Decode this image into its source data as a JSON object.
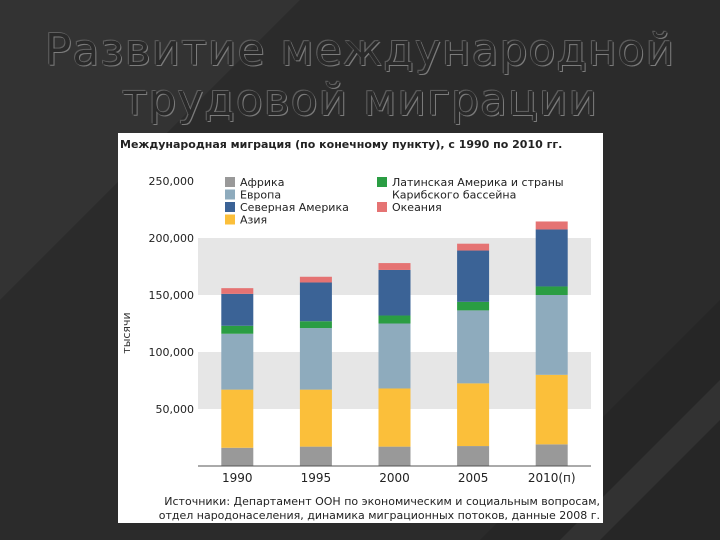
{
  "slide": {
    "title_line1": "Развитие международной",
    "title_line2": "трудовой миграции"
  },
  "chart_data": {
    "type": "bar",
    "stacked": true,
    "title": "Международная миграция (по конечному пункту), с 1990 по 2010 гг.",
    "ylabel": "тысячи",
    "xlabel": "",
    "categories": [
      "1990",
      "1995",
      "2000",
      "2005",
      "2010(п)"
    ],
    "ylim": [
      0,
      250000
    ],
    "yticks": [
      50000,
      100000,
      150000,
      200000,
      250000
    ],
    "ytick_labels": [
      "50,000",
      "100,000",
      "150,000",
      "200,000",
      "250,000"
    ],
    "grid": "alternating bands",
    "legend_position": "top",
    "series": [
      {
        "name": "Африка",
        "color": "#999999",
        "values": [
          16000,
          17000,
          17000,
          17500,
          19000
        ]
      },
      {
        "name": "Азия",
        "color": "#fbbf3a",
        "values": [
          51000,
          50000,
          51000,
          55000,
          61000
        ]
      },
      {
        "name": "Европа",
        "color": "#8eabbd",
        "values": [
          49000,
          54000,
          57000,
          64000,
          70000
        ]
      },
      {
        "name": "Латинская Америка и страны Карибского бассейна",
        "color": "#2a9d43",
        "values": [
          7000,
          6000,
          7000,
          7500,
          7500
        ]
      },
      {
        "name": "Северная Америка",
        "color": "#3b6396",
        "values": [
          28000,
          34000,
          40000,
          45000,
          50000
        ]
      },
      {
        "name": "Океания",
        "color": "#e57373",
        "values": [
          5000,
          5000,
          6000,
          6000,
          7000
        ]
      }
    ],
    "legend_order_left": [
      "Африка",
      "Европа",
      "Северная Америка",
      "Азия"
    ],
    "legend_order_right": [
      "Латинская Америка и страны Карибского бассейна",
      "Океания"
    ],
    "legend_right_line1": "Латинская Америка и страны",
    "legend_right_line2": "Карибского бассейна",
    "source_line1": "Источники: Департамент ООН по экономическим и социальным вопросам,",
    "source_line2": "отдел народонаселения, динамика миграционных потоков, данные 2008 г."
  }
}
